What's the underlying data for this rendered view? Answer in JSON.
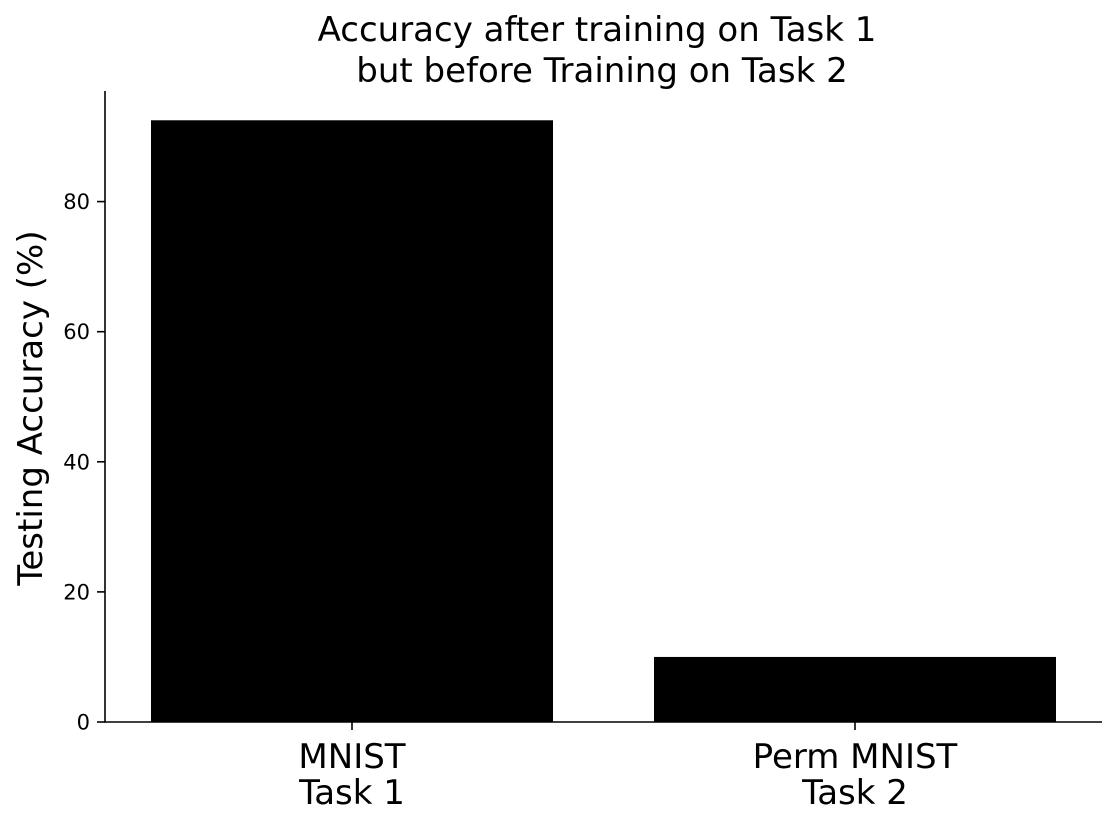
{
  "chart_data": {
    "type": "bar",
    "title_lines": [
      "Accuracy after training on Task 1",
      "but before Training on Task 2"
    ],
    "ylabel": "Testing Accuracy (%)",
    "xlabel": "",
    "categories": [
      [
        "MNIST",
        "Task 1"
      ],
      [
        "Perm MNIST",
        "Task 2"
      ]
    ],
    "values": [
      92.5,
      10.0
    ],
    "ylim": [
      0,
      97
    ],
    "yticks": [
      0,
      20,
      40,
      60,
      80
    ],
    "bar_color": "#000000",
    "grid": false,
    "legend": "none"
  }
}
